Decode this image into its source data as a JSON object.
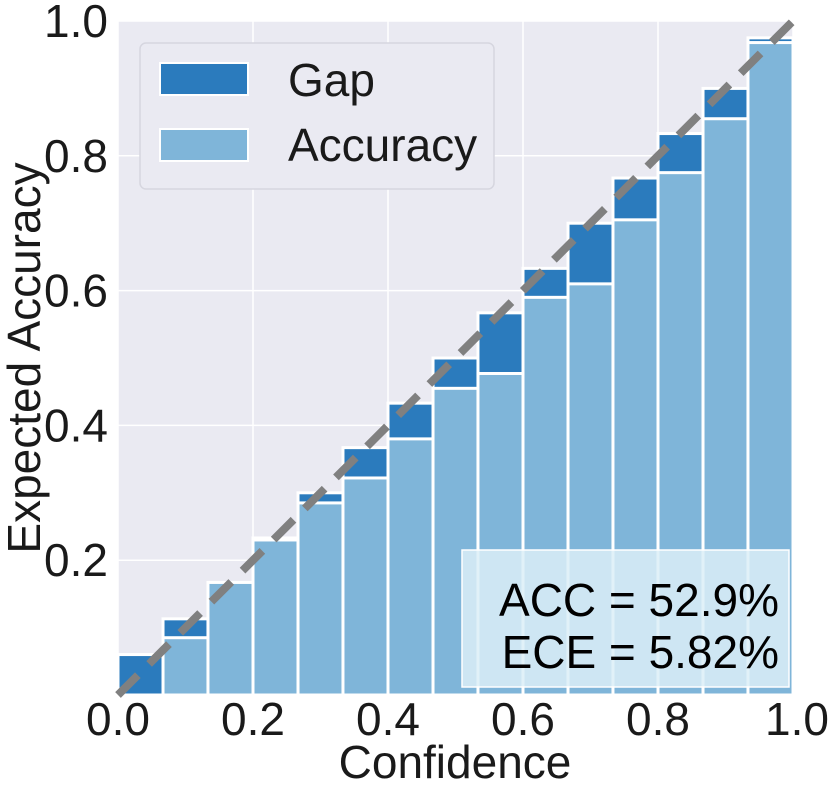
{
  "colors": {
    "plot_background": "#eaeaf2",
    "grid": "#ffffff",
    "gap": "#2b7bbd",
    "accuracy": "#7fb5d9",
    "bar_edge": "#ffffff",
    "diagonal": "#808080",
    "annotation_box": "#dceef7"
  },
  "chart_data": {
    "type": "bar",
    "title": "",
    "xlabel": "Confidence",
    "ylabel": "Expected Accuracy",
    "xlim": [
      0.0,
      1.0
    ],
    "ylim": [
      0.0,
      1.0
    ],
    "x_ticks": [
      "0.0",
      "0.2",
      "0.4",
      "0.6",
      "0.8",
      "1.0"
    ],
    "y_ticks": [
      "0.2",
      "0.4",
      "0.6",
      "0.8",
      "1.0"
    ],
    "x_tick_values": [
      0.0,
      0.2,
      0.4,
      0.6,
      0.8,
      1.0
    ],
    "y_tick_values": [
      0.2,
      0.4,
      0.6,
      0.8,
      1.0
    ],
    "grid": true,
    "legend_position": "top-left",
    "bin_lower_edges": [
      0.0,
      0.0667,
      0.1333,
      0.2,
      0.2667,
      0.3333,
      0.4,
      0.4667,
      0.5333,
      0.6,
      0.6667,
      0.7333,
      0.8,
      0.8667,
      0.9333
    ],
    "bin_width": 0.0667,
    "series": [
      {
        "name": "Gap",
        "values": [
          0.06,
          0.113,
          0.167,
          0.233,
          0.3,
          0.367,
          0.433,
          0.5,
          0.567,
          0.633,
          0.7,
          0.767,
          0.833,
          0.9,
          0.975
        ]
      },
      {
        "name": "Accuracy",
        "values": [
          0.0,
          0.085,
          0.167,
          0.23,
          0.285,
          0.322,
          0.38,
          0.455,
          0.477,
          0.59,
          0.61,
          0.705,
          0.775,
          0.855,
          0.968
        ]
      }
    ],
    "reference_line": {
      "from": [
        0.0,
        0.0
      ],
      "to": [
        1.0,
        1.0
      ],
      "style": "dashed"
    },
    "annotations": [
      "ACC = 52.9%",
      "ECE = 5.82%"
    ]
  }
}
